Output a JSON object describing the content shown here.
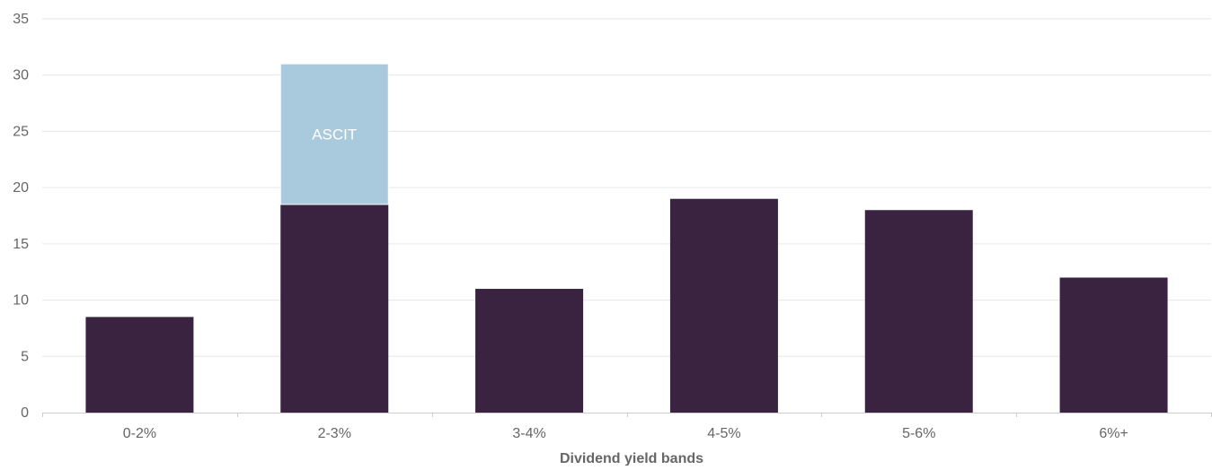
{
  "chart_data": {
    "type": "bar",
    "stacked": true,
    "title": "",
    "xlabel": "Dividend yield bands",
    "ylabel": "",
    "ylim": [
      0,
      35
    ],
    "yticks": [
      0,
      5,
      10,
      15,
      20,
      25,
      30,
      35
    ],
    "grid": true,
    "legend": "none",
    "categories": [
      "0-2%",
      "2-3%",
      "3-4%",
      "4-5%",
      "5-6%",
      "6%+"
    ],
    "series": [
      {
        "values": [
          8.5,
          18.5,
          11,
          19,
          18,
          12
        ],
        "color": "#3a2340"
      },
      {
        "values": [
          0,
          12.5,
          0,
          0,
          0,
          0
        ],
        "color": "#a9c9dc",
        "annotations": [
          "",
          "ASCIT",
          "",
          "",
          "",
          ""
        ]
      }
    ],
    "colors": {
      "grid": "#e6e6e6",
      "axis": "#cccccc",
      "text": "#666666",
      "segment_label": "#ffffff"
    }
  }
}
